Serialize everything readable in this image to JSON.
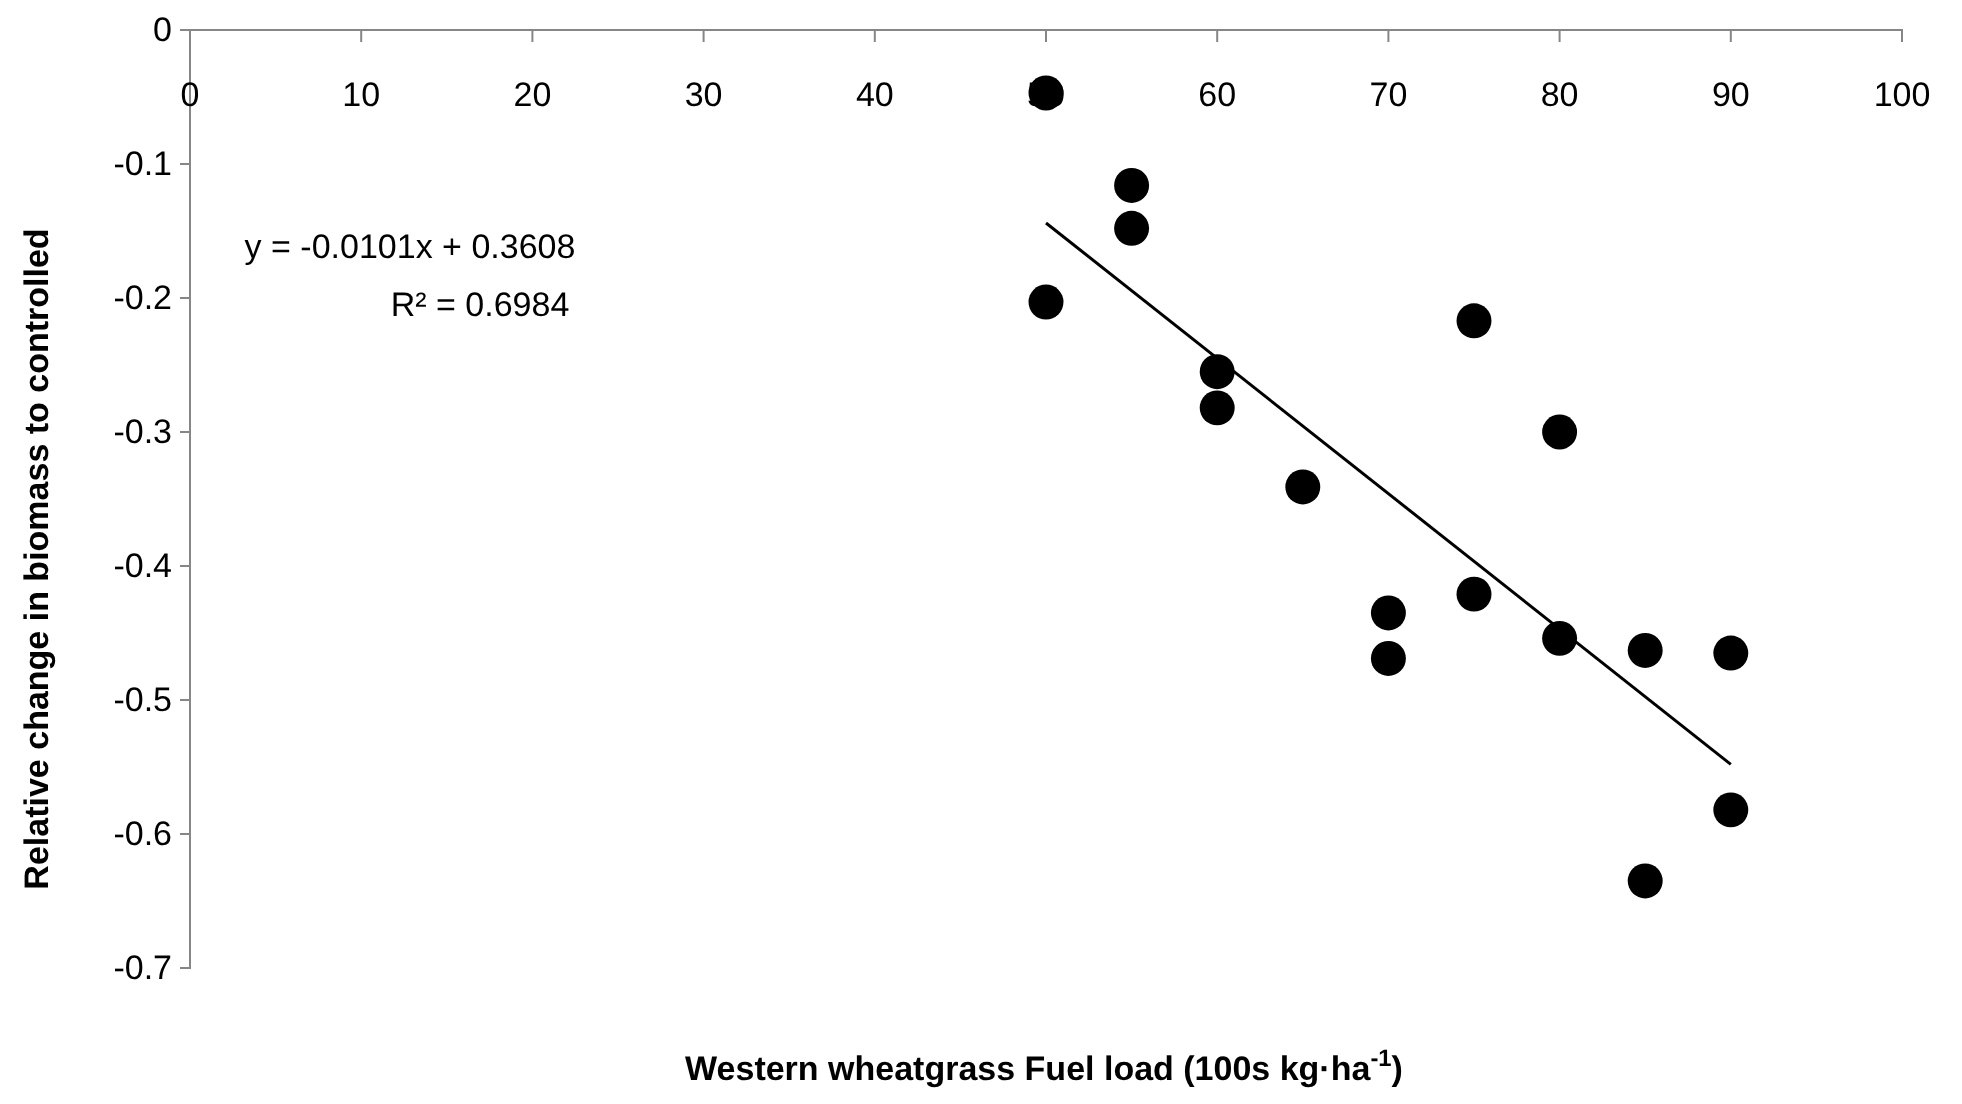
{
  "chart_data": {
    "type": "scatter",
    "xlabel": "Western wheatgrass Fuel load (100s kg·ha$^{-1}$)",
    "ylabel": "Relative change in biomass to controlled",
    "annotations": [
      "y = -0.0101x + 0.3608",
      "R² = 0.6984"
    ],
    "xlim": [
      0,
      100
    ],
    "ylim": [
      -0.7,
      0
    ],
    "xticks": [
      0,
      10,
      20,
      30,
      40,
      50,
      60,
      70,
      80,
      90,
      100
    ],
    "yticks": [
      -0.7,
      -0.6,
      -0.5,
      -0.4,
      -0.3,
      -0.2,
      -0.1,
      0
    ],
    "series": [
      {
        "marker": "circle",
        "color": "#000000",
        "x": [
          50,
          55,
          55,
          50,
          75,
          60,
          60,
          80,
          65,
          70,
          75,
          70,
          80,
          85,
          90,
          90,
          85
        ],
        "values": [
          -0.047,
          -0.116,
          -0.148,
          -0.203,
          -0.217,
          -0.255,
          -0.282,
          -0.3,
          -0.341,
          -0.435,
          -0.421,
          -0.469,
          -0.454,
          -0.463,
          -0.465,
          -0.582,
          -0.635
        ]
      },
      {
        "type": "line",
        "color": "#000000",
        "line_style": "solid",
        "x": [
          50,
          90
        ],
        "values": [
          -0.144,
          -0.548
        ]
      }
    ]
  }
}
